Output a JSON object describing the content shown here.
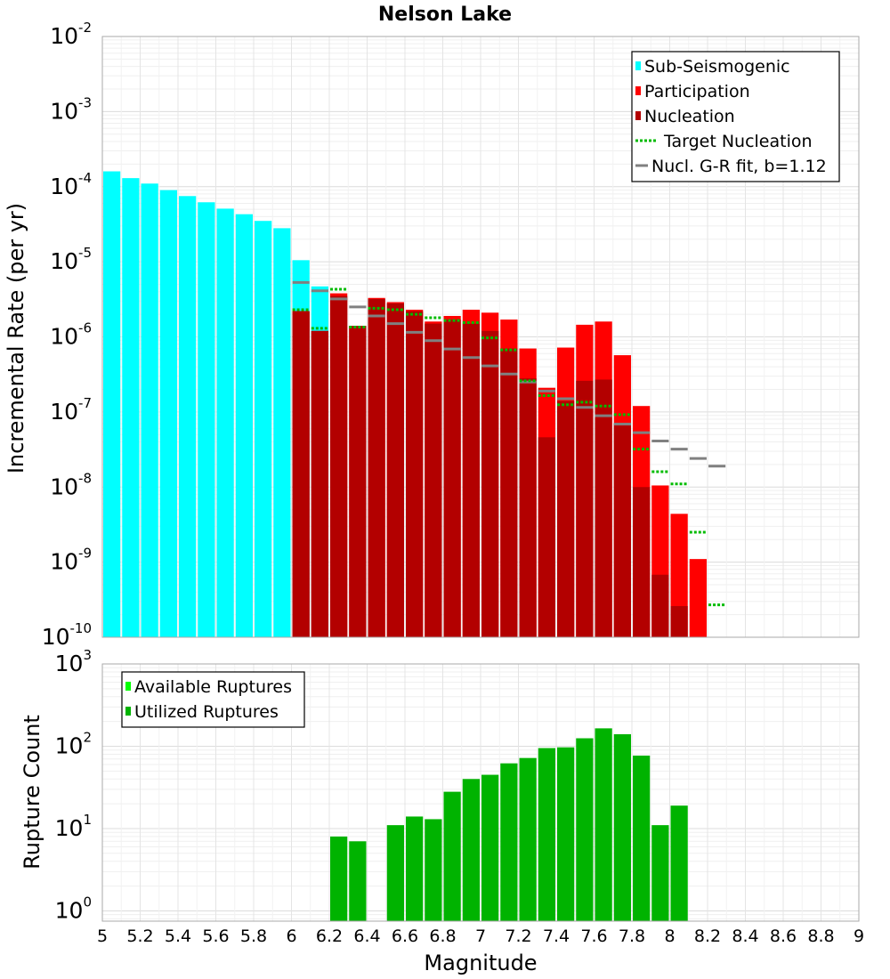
{
  "chart_data": [
    {
      "type": "bar",
      "title": "Nelson Lake",
      "xlabel": "",
      "ylabel": "Incremental Rate (per yr)",
      "yscale": "log",
      "ylim": [
        1e-10,
        0.01
      ],
      "xlim": [
        5,
        9
      ],
      "bin_width": 0.1,
      "y_ticks": [
        {
          "base": "10",
          "exp": "-10"
        },
        {
          "base": "10",
          "exp": "-9"
        },
        {
          "base": "10",
          "exp": "-8"
        },
        {
          "base": "10",
          "exp": "-7"
        },
        {
          "base": "10",
          "exp": "-6"
        },
        {
          "base": "10",
          "exp": "-5"
        },
        {
          "base": "10",
          "exp": "-4"
        },
        {
          "base": "10",
          "exp": "-3"
        },
        {
          "base": "10",
          "exp": "-2"
        }
      ],
      "legend": [
        {
          "label": "Sub-Seismogenic",
          "color": "#00ffff",
          "style": "bar"
        },
        {
          "label": "Participation",
          "color": "#ff0000",
          "style": "bar"
        },
        {
          "label": "Nucleation",
          "color": "#b30000",
          "style": "bar"
        },
        {
          "label": "Target Nucleation",
          "color": "#00bb00",
          "style": "dotted"
        },
        {
          "label": "Nucl. G-R fit, b=1.12",
          "color": "#808080",
          "style": "line"
        }
      ],
      "series": [
        {
          "name": "Sub-Seismogenic",
          "color": "#00ffff",
          "x": [
            5.05,
            5.15,
            5.25,
            5.35,
            5.45,
            5.55,
            5.65,
            5.75,
            5.85,
            5.95,
            6.05,
            6.15
          ],
          "values": [
            0.00016,
            0.00013,
            0.00011,
            9e-05,
            7.5e-05,
            6.2e-05,
            5.1e-05,
            4.3e-05,
            3.5e-05,
            2.8e-05,
            1.05e-05,
            4.7e-06
          ]
        },
        {
          "name": "Participation",
          "color": "#ff0000",
          "x": [
            6.05,
            6.15,
            6.25,
            6.35,
            6.45,
            6.55,
            6.65,
            6.75,
            6.85,
            6.95,
            7.05,
            7.15,
            7.25,
            7.35,
            7.45,
            7.55,
            7.65,
            7.75,
            7.85,
            7.95,
            8.05,
            8.15
          ],
          "values": [
            2.2e-06,
            1.2e-06,
            3.8e-06,
            1.4e-06,
            3.3e-06,
            2.9e-06,
            2.3e-06,
            1.6e-06,
            1.9e-06,
            2.3e-06,
            2.1e-06,
            1.7e-06,
            7e-07,
            2.1e-07,
            7.2e-07,
            1.45e-06,
            1.6e-06,
            5.7e-07,
            1.2e-07,
            1.05e-08,
            4.4e-09,
            1.1e-09
          ]
        },
        {
          "name": "Nucleation",
          "color": "#b30000",
          "x": [
            6.05,
            6.15,
            6.25,
            6.35,
            6.45,
            6.55,
            6.65,
            6.75,
            6.85,
            6.95,
            7.05,
            7.15,
            7.25,
            7.35,
            7.45,
            7.55,
            7.65,
            7.75,
            7.85,
            7.95,
            8.05,
            8.15
          ],
          "values": [
            2.2e-06,
            1.2e-06,
            3.5e-06,
            1.4e-06,
            3.2e-06,
            2.8e-06,
            2.2e-06,
            1.5e-06,
            1.7e-06,
            1.5e-06,
            1.2e-06,
            7e-07,
            2.8e-07,
            4.6e-08,
            1.4e-07,
            2.6e-07,
            2.7e-07,
            7e-08,
            1e-08,
            6.8e-10,
            2.6e-10,
            1e-10
          ]
        },
        {
          "name": "Target Nucleation",
          "color": "#00bb00",
          "x": [
            6.05,
            6.15,
            6.25,
            6.35,
            6.45,
            6.55,
            6.65,
            6.75,
            6.85,
            6.95,
            7.05,
            7.15,
            7.25,
            7.35,
            7.45,
            7.55,
            7.65,
            7.75,
            7.85,
            7.95,
            8.05,
            8.15,
            8.25
          ],
          "values": [
            2.3e-06,
            1.3e-06,
            4.3e-06,
            1.35e-06,
            2.4e-06,
            2.3e-06,
            2e-06,
            1.8e-06,
            1.65e-06,
            1.55e-06,
            9.7e-07,
            6.7e-07,
            2.6e-07,
            1.65e-07,
            1.25e-07,
            1.35e-07,
            1.2e-07,
            9.2e-08,
            3.2e-08,
            1.6e-08,
            1.1e-08,
            2.5e-09,
            2.7e-10
          ]
        },
        {
          "name": "Nucl. G-R fit, b=1.12",
          "color": "#808080",
          "x": [
            6.05,
            6.15,
            6.25,
            6.35,
            6.45,
            6.55,
            6.65,
            6.75,
            6.85,
            6.95,
            7.05,
            7.15,
            7.25,
            7.35,
            7.45,
            7.55,
            7.65,
            7.75,
            7.85,
            7.95,
            8.05,
            8.15,
            8.25
          ],
          "values": [
            5.3e-06,
            4.1e-06,
            3.2e-06,
            2.5e-06,
            1.9e-06,
            1.5e-06,
            1.15e-06,
            8.9e-07,
            6.9e-07,
            5.3e-07,
            4.1e-07,
            3.2e-07,
            2.5e-07,
            1.9e-07,
            1.5e-07,
            1.15e-07,
            8.9e-08,
            6.9e-08,
            5.3e-08,
            4.1e-08,
            3.2e-08,
            2.4e-08,
            1.9e-08
          ]
        }
      ]
    },
    {
      "type": "bar",
      "title": "",
      "xlabel": "Magnitude",
      "ylabel": "Rupture Count",
      "yscale": "log",
      "ylim": [
        0.75,
        1000
      ],
      "xlim": [
        5,
        9
      ],
      "bin_width": 0.1,
      "x_ticks": [
        "5",
        "5.2",
        "5.4",
        "5.6",
        "5.8",
        "6",
        "6.2",
        "6.4",
        "6.6",
        "6.8",
        "7",
        "7.2",
        "7.4",
        "7.6",
        "7.8",
        "8",
        "8.2",
        "8.4",
        "8.6",
        "8.8",
        "9"
      ],
      "y_ticks": [
        {
          "base": "10",
          "exp": "0"
        },
        {
          "base": "10",
          "exp": "1"
        },
        {
          "base": "10",
          "exp": "2"
        },
        {
          "base": "10",
          "exp": "3"
        }
      ],
      "legend": [
        {
          "label": "Available Ruptures",
          "color": "#00ff00",
          "style": "bar"
        },
        {
          "label": "Utilized Ruptures",
          "color": "#00b300",
          "style": "bar"
        }
      ],
      "series": [
        {
          "name": "Utilized Ruptures",
          "color": "#00b300",
          "x": [
            6.25,
            6.35,
            6.55,
            6.65,
            6.75,
            6.85,
            6.95,
            7.05,
            7.15,
            7.25,
            7.35,
            7.45,
            7.55,
            7.65,
            7.75,
            7.85,
            7.95,
            8.05
          ],
          "values": [
            8,
            7,
            11,
            14,
            13,
            28,
            40,
            45,
            62,
            72,
            95,
            97,
            125,
            165,
            140,
            77,
            11,
            19
          ]
        }
      ]
    }
  ]
}
